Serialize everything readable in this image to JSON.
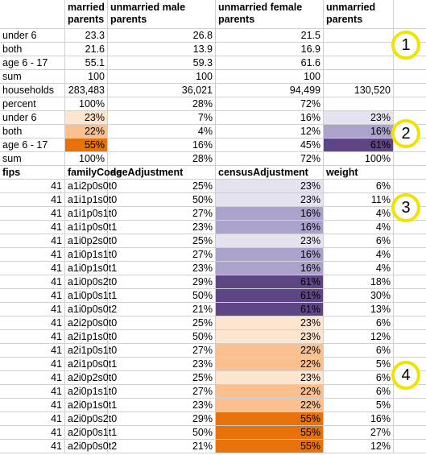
{
  "headers": [
    "married parents",
    "unmarried male parents",
    "unmarried female parents",
    "unmarried parents"
  ],
  "top_rows": [
    {
      "label": "under 6",
      "vals": [
        "23.3",
        "26.8",
        "21.5",
        ""
      ],
      "colors": [
        "",
        "",
        "",
        ""
      ]
    },
    {
      "label": "both",
      "vals": [
        "21.6",
        "13.9",
        "16.9",
        ""
      ],
      "colors": [
        "",
        "",
        "",
        ""
      ]
    },
    {
      "label": "age 6 - 17",
      "vals": [
        "55.1",
        "59.3",
        "61.6",
        ""
      ],
      "colors": [
        "",
        "",
        "",
        ""
      ]
    },
    {
      "label": "sum",
      "vals": [
        "100",
        "100",
        "100",
        ""
      ],
      "colors": [
        "",
        "",
        "",
        ""
      ]
    },
    {
      "label": "households",
      "vals": [
        "283,483",
        "36,021",
        "94,499",
        "130,520"
      ],
      "colors": [
        "",
        "",
        "",
        ""
      ]
    },
    {
      "label": "percent",
      "vals": [
        "100%",
        "28%",
        "72%",
        ""
      ],
      "colors": [
        "",
        "",
        "",
        ""
      ]
    },
    {
      "label": "under 6",
      "vals": [
        "23%",
        "7%",
        "16%",
        "23%"
      ],
      "colors": [
        "#fde5d0",
        "",
        "",
        "#e6e3f1"
      ]
    },
    {
      "label": "both",
      "vals": [
        "22%",
        "4%",
        "12%",
        "16%"
      ],
      "colors": [
        "#fbc08f",
        "",
        "",
        "#ada2cc"
      ]
    },
    {
      "label": "age 6 - 17",
      "vals": [
        "55%",
        "16%",
        "45%",
        "61%"
      ],
      "colors": [
        "#e8720a",
        "",
        "",
        "#5e4583"
      ]
    },
    {
      "label": "sum",
      "vals": [
        "100%",
        "28%",
        "72%",
        "100%"
      ],
      "colors": [
        "",
        "",
        "",
        ""
      ]
    }
  ],
  "sub_header": [
    "fips",
    "familyCode",
    "ageAdjustment",
    "censusAdjustment",
    "weight"
  ],
  "data_rows": [
    {
      "fips": "41",
      "code": "a1i2p0s0t0",
      "age": "25%",
      "census": "23%",
      "weight": "6%",
      "color": "#e6e3f1"
    },
    {
      "fips": "41",
      "code": "a1i1p1s0t0",
      "age": "50%",
      "census": "23%",
      "weight": "11%",
      "color": "#e6e3f1"
    },
    {
      "fips": "41",
      "code": "a1i1p0s1t0",
      "age": "27%",
      "census": "16%",
      "weight": "4%",
      "color": "#ada2cc"
    },
    {
      "fips": "41",
      "code": "a1i1p0s0t1",
      "age": "23%",
      "census": "16%",
      "weight": "4%",
      "color": "#ada2cc"
    },
    {
      "fips": "41",
      "code": "a1i0p2s0t0",
      "age": "25%",
      "census": "23%",
      "weight": "6%",
      "color": "#e6e3f1"
    },
    {
      "fips": "41",
      "code": "a1i0p1s1t0",
      "age": "27%",
      "census": "16%",
      "weight": "4%",
      "color": "#ada2cc"
    },
    {
      "fips": "41",
      "code": "a1i0p1s0t1",
      "age": "23%",
      "census": "16%",
      "weight": "4%",
      "color": "#ada2cc"
    },
    {
      "fips": "41",
      "code": "a1i0p0s2t0",
      "age": "29%",
      "census": "61%",
      "weight": "18%",
      "color": "#5e4583"
    },
    {
      "fips": "41",
      "code": "a1i0p0s1t1",
      "age": "50%",
      "census": "61%",
      "weight": "30%",
      "color": "#5e4583"
    },
    {
      "fips": "41",
      "code": "a1i0p0s0t2",
      "age": "21%",
      "census": "61%",
      "weight": "13%",
      "color": "#5e4583"
    },
    {
      "fips": "41",
      "code": "a2i2p0s0t0",
      "age": "25%",
      "census": "23%",
      "weight": "6%",
      "color": "#fde5d0"
    },
    {
      "fips": "41",
      "code": "a2i1p1s0t0",
      "age": "50%",
      "census": "23%",
      "weight": "12%",
      "color": "#fde5d0"
    },
    {
      "fips": "41",
      "code": "a2i1p0s1t0",
      "age": "27%",
      "census": "22%",
      "weight": "6%",
      "color": "#fbc08f"
    },
    {
      "fips": "41",
      "code": "a2i1p0s0t1",
      "age": "23%",
      "census": "22%",
      "weight": "5%",
      "color": "#fbc08f"
    },
    {
      "fips": "41",
      "code": "a2i0p2s0t0",
      "age": "25%",
      "census": "23%",
      "weight": "6%",
      "color": "#fde5d0"
    },
    {
      "fips": "41",
      "code": "a2i0p1s1t0",
      "age": "27%",
      "census": "22%",
      "weight": "6%",
      "color": "#fbc08f"
    },
    {
      "fips": "41",
      "code": "a2i0p1s0t1",
      "age": "23%",
      "census": "22%",
      "weight": "5%",
      "color": "#fbc08f"
    },
    {
      "fips": "41",
      "code": "a2i0p0s2t0",
      "age": "29%",
      "census": "55%",
      "weight": "16%",
      "color": "#e8720a"
    },
    {
      "fips": "41",
      "code": "a2i0p0s1t1",
      "age": "50%",
      "census": "55%",
      "weight": "27%",
      "color": "#e8720a"
    },
    {
      "fips": "41",
      "code": "a2i0p0s0t2",
      "age": "21%",
      "census": "55%",
      "weight": "12%",
      "color": "#e8720a"
    }
  ],
  "callouts": [
    "1",
    "2",
    "3",
    "4"
  ],
  "colors": {
    "grid": "#d0d0d0",
    "callout_border": "#f2e200"
  }
}
